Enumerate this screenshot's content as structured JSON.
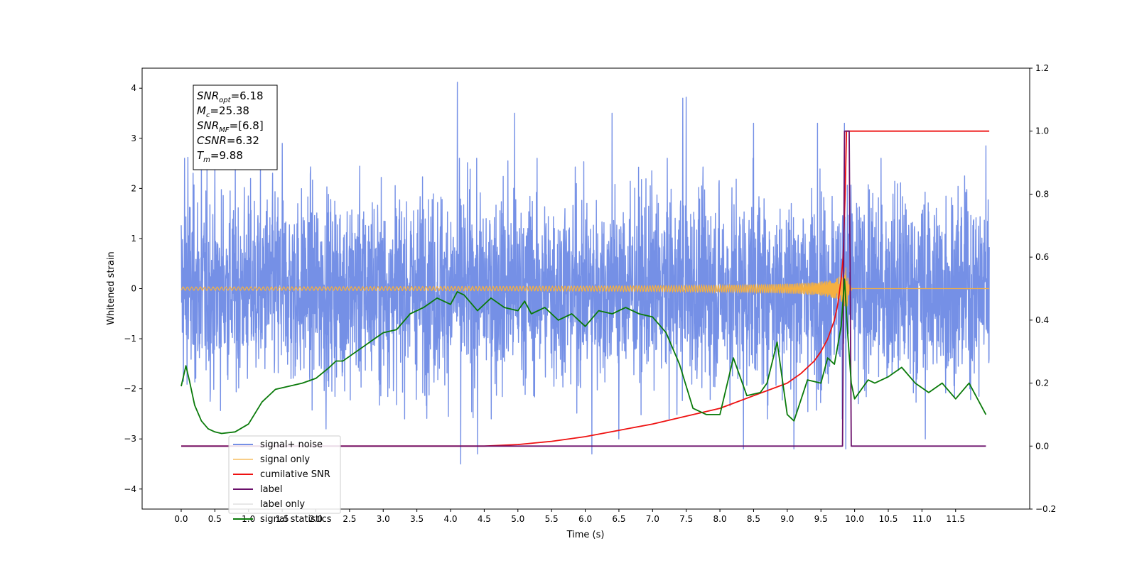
{
  "chart_data": {
    "type": "line",
    "title": "",
    "xlabel": "Time (s)",
    "ylabel": "Whitened strain",
    "xlim": [
      -0.58,
      12.6
    ],
    "ylim": [
      -4.4,
      4.4
    ],
    "y2lim": [
      -0.2,
      1.2
    ],
    "xticks": [
      0.0,
      0.5,
      1.0,
      1.5,
      2.0,
      2.5,
      3.0,
      3.5,
      4.0,
      4.5,
      5.0,
      5.5,
      6.0,
      6.5,
      7.0,
      7.5,
      8.0,
      8.5,
      9.0,
      9.5,
      10.0,
      10.5,
      11.0,
      11.5
    ],
    "xtick_labels": [
      "0.0",
      "0.5",
      "1.0",
      "1.5",
      "2.0",
      "2.5",
      "3.0",
      "3.5",
      "4.0",
      "4.5",
      "5.0",
      "5.5",
      "6.0",
      "6.5",
      "7.0",
      "7.5",
      "8.0",
      "8.5",
      "9.0",
      "9.5",
      "10.0",
      "10.5",
      "11.0",
      "11.5"
    ],
    "yticks": [
      -4,
      -3,
      -2,
      -1,
      0,
      1,
      2,
      3,
      4
    ],
    "ytick_labels": [
      "−4",
      "−3",
      "−2",
      "−1",
      "0",
      "1",
      "2",
      "3",
      "4"
    ],
    "y2ticks": [
      -0.2,
      0.0,
      0.2,
      0.4,
      0.6,
      0.8,
      1.0,
      1.2
    ],
    "y2tick_labels": [
      "−0.2",
      "0.0",
      "0.2",
      "0.4",
      "0.6",
      "0.8",
      "1.0",
      "1.2"
    ],
    "grid": false,
    "legend_position": "lower-left",
    "annotation": [
      {
        "base": "SNR",
        "sub": "opt",
        "value": "=6.18"
      },
      {
        "base": "M",
        "sub": "c",
        "value": "=25.38"
      },
      {
        "base": "SNR",
        "sub": "MF",
        "value": "=[6.8]"
      },
      {
        "base": "CSNR",
        "sub": "",
        "value": "=6.32"
      },
      {
        "base": "T",
        "sub": "m",
        "value": "=9.88"
      }
    ],
    "series": [
      {
        "name": "signal+ noise",
        "axis": "left",
        "color": "#7590e6",
        "kind": "noise",
        "x_range": [
          0.0,
          12.0
        ],
        "typical_amplitude": 1.0,
        "peaks": [
          [
            0.05,
            2.6
          ],
          [
            0.1,
            2.62
          ],
          [
            0.3,
            2.55
          ],
          [
            1.5,
            2.9
          ],
          [
            2.15,
            3.45
          ],
          [
            2.15,
            -2.8
          ],
          [
            4.1,
            4.12
          ],
          [
            4.15,
            -3.5
          ],
          [
            4.4,
            -3.3
          ],
          [
            4.85,
            2.55
          ],
          [
            4.95,
            3.5
          ],
          [
            6.1,
            -3.3
          ],
          [
            6.4,
            3.5
          ],
          [
            6.5,
            -3.0
          ],
          [
            7.45,
            3.8
          ],
          [
            7.5,
            3.82
          ],
          [
            8.35,
            -3.2
          ],
          [
            8.5,
            3.3
          ],
          [
            9.1,
            -3.2
          ],
          [
            9.45,
            3.3
          ],
          [
            9.85,
            3.3
          ],
          [
            9.87,
            -3.2
          ],
          [
            11.05,
            -3.0
          ],
          [
            11.95,
            -3.5
          ],
          [
            11.95,
            2.85
          ]
        ]
      },
      {
        "name": "signal only",
        "axis": "left",
        "color": "#f5b041",
        "kind": "chirp",
        "x_range": [
          0.0,
          12.0
        ],
        "merger_time": 9.88,
        "peak_amplitude": 0.55
      },
      {
        "name": "cumilative SNR",
        "axis": "right",
        "color": "#ee1111",
        "x": [
          0.0,
          4.5,
          5.0,
          5.5,
          6.0,
          6.5,
          7.0,
          7.5,
          8.0,
          8.5,
          9.0,
          9.2,
          9.4,
          9.5,
          9.6,
          9.7,
          9.75,
          9.8,
          9.83,
          9.86,
          9.88,
          12.0
        ],
        "values": [
          0.0,
          0.0,
          0.005,
          0.015,
          0.03,
          0.05,
          0.07,
          0.095,
          0.12,
          0.16,
          0.2,
          0.23,
          0.27,
          0.3,
          0.34,
          0.4,
          0.45,
          0.53,
          0.6,
          0.8,
          1.0,
          1.0
        ]
      },
      {
        "name": "label",
        "axis": "right",
        "color": "#6a0f6a",
        "x": [
          0.0,
          9.82,
          9.85,
          9.92,
          9.95,
          11.95
        ],
        "values": [
          0.0,
          0.0,
          1.0,
          1.0,
          0.0,
          0.0
        ]
      },
      {
        "name": "label only",
        "axis": "right",
        "color": "#e8e8e8",
        "legend_only": true,
        "x": [],
        "values": []
      },
      {
        "name": "signal statistics",
        "axis": "right",
        "color": "#0a7a0a",
        "x": [
          0.0,
          0.07,
          0.12,
          0.2,
          0.3,
          0.4,
          0.5,
          0.6,
          0.8,
          1.0,
          1.2,
          1.4,
          1.6,
          1.8,
          2.0,
          2.2,
          2.3,
          2.4,
          2.6,
          2.8,
          3.0,
          3.2,
          3.4,
          3.6,
          3.8,
          4.0,
          4.1,
          4.2,
          4.4,
          4.6,
          4.8,
          5.0,
          5.1,
          5.2,
          5.4,
          5.6,
          5.8,
          6.0,
          6.2,
          6.4,
          6.6,
          6.8,
          7.0,
          7.2,
          7.4,
          7.6,
          7.8,
          8.0,
          8.2,
          8.4,
          8.6,
          8.7,
          8.85,
          9.0,
          9.1,
          9.3,
          9.5,
          9.6,
          9.7,
          9.8,
          9.85,
          9.9,
          9.95,
          10.0,
          10.2,
          10.3,
          10.5,
          10.7,
          10.9,
          11.1,
          11.3,
          11.5,
          11.7,
          11.95
        ],
        "values": [
          0.19,
          0.255,
          0.21,
          0.13,
          0.08,
          0.055,
          0.045,
          0.04,
          0.045,
          0.07,
          0.14,
          0.18,
          0.19,
          0.2,
          0.215,
          0.25,
          0.27,
          0.27,
          0.3,
          0.33,
          0.36,
          0.37,
          0.42,
          0.44,
          0.47,
          0.45,
          0.49,
          0.48,
          0.43,
          0.47,
          0.44,
          0.43,
          0.46,
          0.42,
          0.44,
          0.4,
          0.42,
          0.38,
          0.43,
          0.42,
          0.44,
          0.42,
          0.41,
          0.36,
          0.26,
          0.12,
          0.1,
          0.1,
          0.28,
          0.16,
          0.17,
          0.2,
          0.33,
          0.1,
          0.08,
          0.21,
          0.2,
          0.28,
          0.26,
          0.38,
          0.53,
          0.35,
          0.2,
          0.15,
          0.21,
          0.2,
          0.22,
          0.25,
          0.2,
          0.17,
          0.2,
          0.15,
          0.2,
          0.1
        ]
      }
    ]
  }
}
